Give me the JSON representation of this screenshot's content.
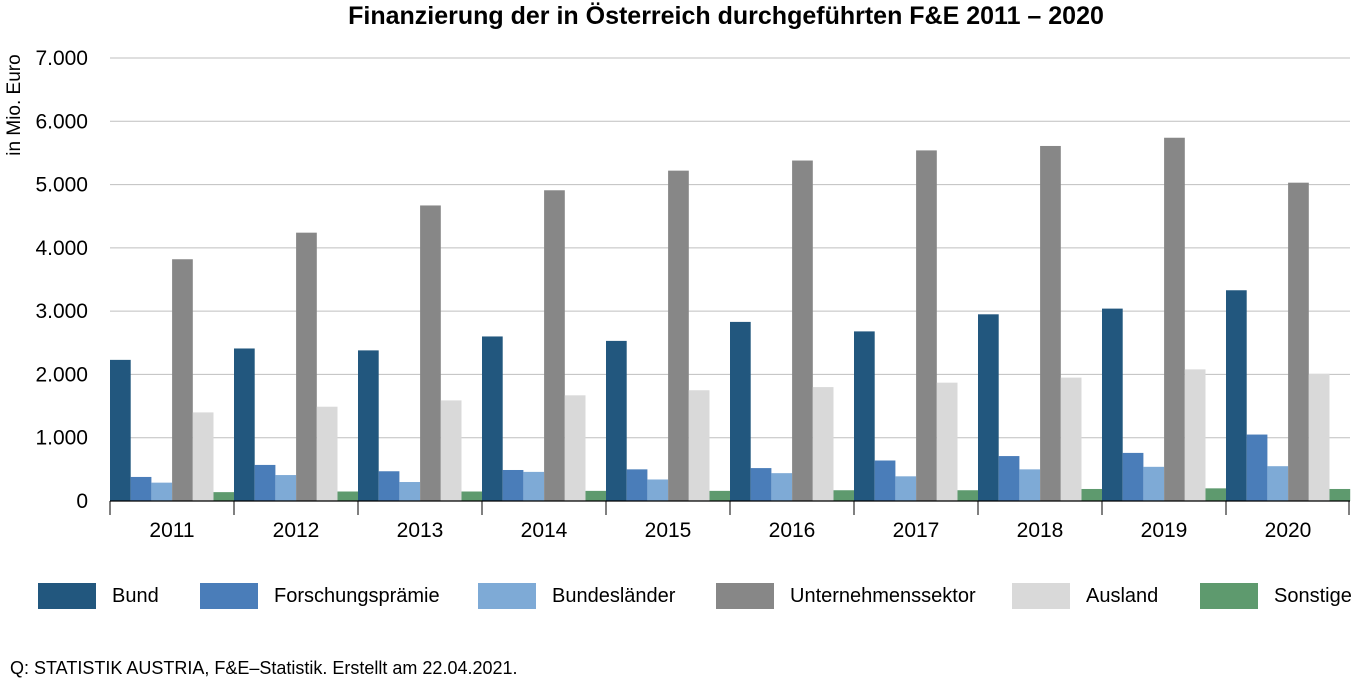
{
  "source": "Q: STATISTIK AUSTRIA, F&E–Statistik. Erstellt am 22.04.2021.",
  "chart_data": {
    "type": "bar",
    "title": "Finanzierung der in Österreich durchgeführten F&E 2011 – 2020",
    "xlabel": "",
    "ylabel": "in Mio. Euro",
    "ylim": [
      0,
      7000
    ],
    "yticks": [
      0,
      1000,
      2000,
      3000,
      4000,
      5000,
      6000,
      7000
    ],
    "ytick_labels": [
      "0",
      "1.000",
      "2.000",
      "3.000",
      "4.000",
      "5.000",
      "6.000",
      "7.000"
    ],
    "grid": true,
    "legend_position": "bottom",
    "categories": [
      "2011",
      "2012",
      "2013",
      "2014",
      "2015",
      "2016",
      "2017",
      "2018",
      "2019",
      "2020"
    ],
    "series": [
      {
        "name": "Bund",
        "color": "#22577e",
        "values": [
          2230,
          2410,
          2380,
          2600,
          2530,
          2830,
          2680,
          2950,
          3040,
          3330
        ]
      },
      {
        "name": "Forschungsprämie",
        "color": "#4a7db9",
        "values": [
          380,
          570,
          470,
          490,
          500,
          520,
          640,
          710,
          760,
          1050
        ]
      },
      {
        "name": "Bundesländer",
        "color": "#7eaad6",
        "values": [
          290,
          410,
          300,
          460,
          340,
          440,
          390,
          500,
          540,
          550
        ]
      },
      {
        "name": "Unternehmenssektor",
        "color": "#878787",
        "values": [
          3820,
          4240,
          4670,
          4910,
          5220,
          5380,
          5540,
          5610,
          5740,
          5030
        ]
      },
      {
        "name": "Ausland",
        "color": "#d9d9d9",
        "values": [
          1400,
          1490,
          1590,
          1670,
          1750,
          1800,
          1870,
          1950,
          2080,
          2010
        ]
      },
      {
        "name": "Sonstige",
        "color": "#5e9a6e",
        "values": [
          140,
          150,
          150,
          160,
          160,
          170,
          170,
          190,
          200,
          190
        ]
      }
    ]
  }
}
